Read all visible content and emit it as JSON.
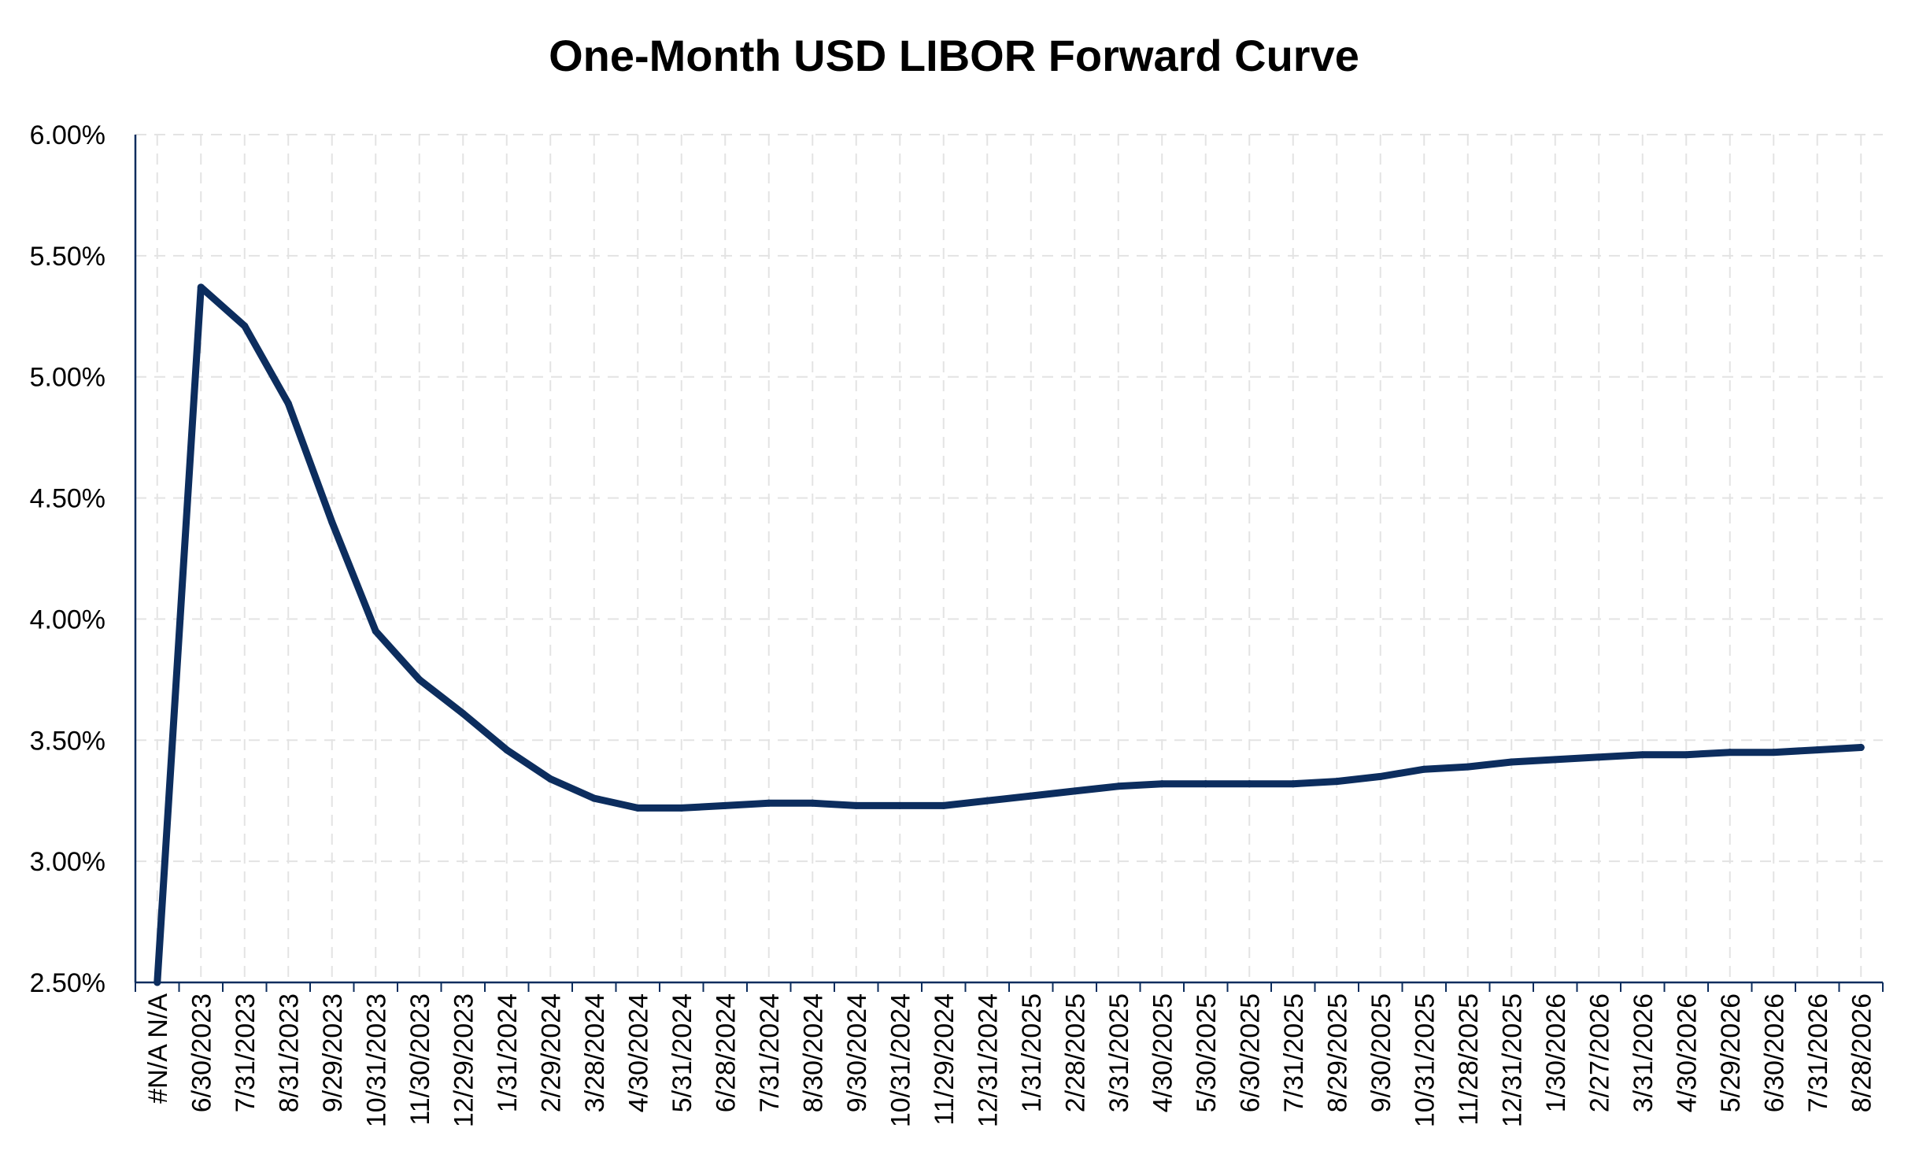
{
  "chart_data": {
    "type": "line",
    "title": "One-Month USD LIBOR Forward Curve",
    "xlabel": "",
    "ylabel": "",
    "ylim": [
      0.025,
      0.06
    ],
    "y_ticks": [
      "2.50%",
      "3.00%",
      "3.50%",
      "4.00%",
      "4.50%",
      "5.00%",
      "5.50%",
      "6.00%"
    ],
    "grid": true,
    "line_color": "#0C2D5E",
    "categories": [
      "#N/A N/A",
      "6/30/2023",
      "7/31/2023",
      "8/31/2023",
      "9/29/2023",
      "10/31/2023",
      "11/30/2023",
      "12/29/2023",
      "1/31/2024",
      "2/29/2024",
      "3/28/2024",
      "4/30/2024",
      "5/31/2024",
      "6/28/2024",
      "7/31/2024",
      "8/30/2024",
      "9/30/2024",
      "10/31/2024",
      "11/29/2024",
      "12/31/2024",
      "1/31/2025",
      "2/28/2025",
      "3/31/2025",
      "4/30/2025",
      "5/30/2025",
      "6/30/2025",
      "7/31/2025",
      "8/29/2025",
      "9/30/2025",
      "10/31/2025",
      "11/28/2025",
      "12/31/2025",
      "1/30/2026",
      "2/27/2026",
      "3/31/2026",
      "4/30/2026",
      "5/29/2026",
      "6/30/2026",
      "7/31/2026",
      "8/28/2026"
    ],
    "series": [
      {
        "values": [
          0.025,
          0.0537,
          0.0521,
          0.0489,
          0.044,
          0.0395,
          0.0375,
          0.0361,
          0.0346,
          0.0334,
          0.0326,
          0.0322,
          0.0322,
          0.0323,
          0.0324,
          0.0324,
          0.0323,
          0.0323,
          0.0323,
          0.0325,
          0.0327,
          0.0329,
          0.0331,
          0.0332,
          0.0332,
          0.0332,
          0.0332,
          0.0333,
          0.0335,
          0.0338,
          0.0339,
          0.0341,
          0.0342,
          0.0343,
          0.0344,
          0.0344,
          0.0345,
          0.0345,
          0.0346,
          0.0347
        ]
      }
    ]
  }
}
